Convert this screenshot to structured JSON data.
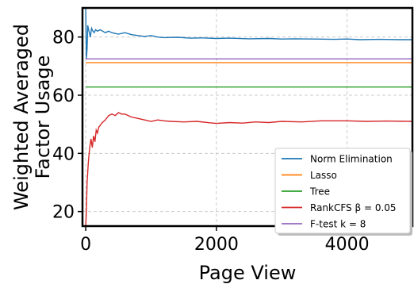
{
  "chart_data": {
    "type": "line",
    "xlabel": "Page View",
    "ylabel_lines": [
      "Weighted Averaged",
      "Factor Usage"
    ],
    "xlim": [
      -50,
      5000
    ],
    "ylim": [
      15,
      90
    ],
    "xticks": [
      0,
      2000,
      4000
    ],
    "xtick_labels": [
      "0",
      "2000",
      "4000"
    ],
    "yticks": [
      20,
      40,
      60,
      80
    ],
    "ytick_labels": [
      "20",
      "40",
      "60",
      "80"
    ],
    "grid": true,
    "legend_position": "lower-right",
    "series": [
      {
        "name": "Norm Elimination",
        "color": "#1f77b4",
        "x": [
          0,
          10,
          20,
          30,
          50,
          70,
          90,
          110,
          130,
          150,
          180,
          220,
          260,
          300,
          350,
          400,
          500,
          600,
          700,
          800,
          900,
          1000,
          1100,
          1200,
          1400,
          1600,
          1800,
          2000,
          2200,
          2500,
          2800,
          3000,
          3200,
          3500,
          3800,
          4000,
          4200,
          4500,
          4800,
          5000
        ],
        "y": [
          90,
          72.5,
          76,
          84,
          82,
          80,
          83,
          82,
          81.5,
          82.5,
          82,
          82.5,
          82,
          81.5,
          82,
          81.5,
          81,
          81.5,
          80.8,
          80.5,
          80.2,
          80.5,
          80,
          79.8,
          79.9,
          79.6,
          79.7,
          79.5,
          79.6,
          79.4,
          79.5,
          79.3,
          79.4,
          79.3,
          79.2,
          79.3,
          79.1,
          79.2,
          79.1,
          79.1
        ]
      },
      {
        "name": "Lasso",
        "color": "#ff7f0e",
        "x": [
          0,
          5000
        ],
        "y": [
          71.2,
          71.2
        ]
      },
      {
        "name": "Tree",
        "color": "#2ca02c",
        "x": [
          0,
          5000
        ],
        "y": [
          62.8,
          62.8
        ]
      },
      {
        "name": "RankCFS β = 0.05",
        "color": "#d62728",
        "x": [
          0,
          10,
          20,
          40,
          60,
          80,
          100,
          120,
          140,
          160,
          180,
          200,
          250,
          300,
          350,
          400,
          450,
          500,
          550,
          600,
          700,
          800,
          900,
          1000,
          1100,
          1200,
          1300,
          1500,
          1700,
          1900,
          2000,
          2200,
          2400,
          2600,
          2800,
          3000,
          3300,
          3600,
          4000,
          4300,
          4600,
          5000
        ],
        "y": [
          15,
          20,
          30,
          37,
          42,
          45,
          42,
          46,
          44,
          48,
          47,
          49,
          50.5,
          51.5,
          53,
          53.5,
          53,
          54,
          53.5,
          53.5,
          52.5,
          52,
          51.5,
          51,
          51.5,
          51.2,
          51,
          50.8,
          51,
          50.5,
          50.3,
          50.6,
          50.4,
          50.8,
          50.6,
          51,
          50.8,
          51.2,
          51.2,
          51,
          51.1,
          51
        ]
      },
      {
        "name": "F-test k = 8",
        "color": "#9467bd",
        "x": [
          0,
          5000
        ],
        "y": [
          72.5,
          72.5
        ]
      }
    ],
    "legend_entries": [
      {
        "label": "Norm Elimination",
        "color": "#1f77b4"
      },
      {
        "label": "Lasso",
        "color": "#ff7f0e"
      },
      {
        "label": "Tree",
        "color": "#2ca02c"
      },
      {
        "label": "RankCFS β = 0.05",
        "color": "#d62728"
      },
      {
        "label": "F-test k = 8",
        "color": "#9467bd"
      }
    ]
  }
}
